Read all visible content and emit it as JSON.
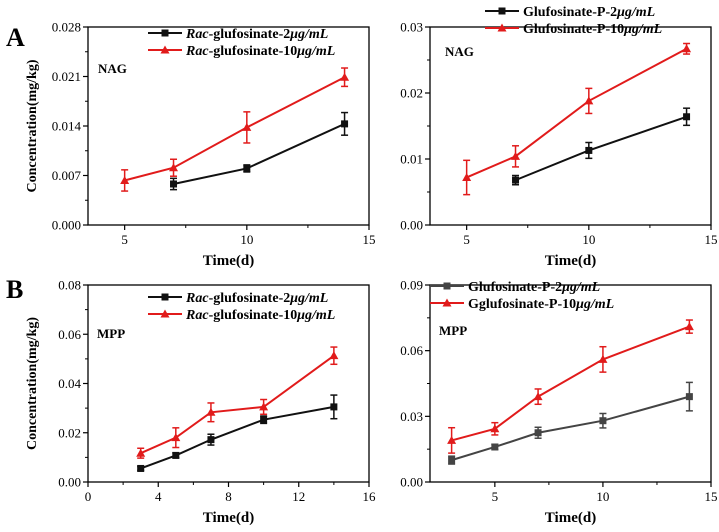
{
  "figure": {
    "panel_labels": [
      "A",
      "B"
    ]
  },
  "colors": {
    "series_2ug": "#111111",
    "series_2ug_gray": "#444444",
    "series_10ug": "#e11b1b",
    "axis": "#000000"
  },
  "chart_data": [
    {
      "panel": "A",
      "type": "line",
      "annotation": "NAG",
      "xlabel": "Time(d)",
      "ylabel": "Concentration(mg/kg)",
      "xlim": [
        3.5,
        15
      ],
      "ylim": [
        0,
        0.028
      ],
      "xticks": [
        5,
        10,
        15
      ],
      "yticks": [
        0.0,
        0.007,
        0.014,
        0.021,
        0.028
      ],
      "ytick_labels": [
        "0.000",
        "0.007",
        "0.014",
        "0.021",
        "0.028"
      ],
      "legend_position": "top-center",
      "series": [
        {
          "name": "Rac-glufosinate-2μg/mL",
          "name_prefix": "Rac",
          "name_rest": "-glufosinate-2",
          "name_unit": "μg/mL",
          "color_key": "series_2ug",
          "marker": "square",
          "x": [
            7,
            10,
            14
          ],
          "y": [
            0.0058,
            0.008,
            0.0143
          ],
          "err": [
            0.0008,
            0.0005,
            0.0016
          ]
        },
        {
          "name": "Rac-glufosinate-10μg/mL",
          "name_prefix": "Rac",
          "name_rest": "-glufosinate-10",
          "name_unit": "μg/mL",
          "color_key": "series_10ug",
          "marker": "triangle",
          "x": [
            5,
            7,
            10,
            14
          ],
          "y": [
            0.0063,
            0.0081,
            0.0138,
            0.0209
          ],
          "err": [
            0.0015,
            0.0012,
            0.0022,
            0.0013
          ]
        }
      ]
    },
    {
      "panel": "A",
      "type": "line",
      "annotation": "NAG",
      "xlabel": "Time(d)",
      "ylabel": "",
      "xlim": [
        3.5,
        15
      ],
      "ylim": [
        0,
        0.03
      ],
      "xticks": [
        5,
        10,
        15
      ],
      "yticks": [
        0.0,
        0.01,
        0.02,
        0.03
      ],
      "ytick_labels": [
        "0.00",
        "0.01",
        "0.02",
        "0.03"
      ],
      "legend_position": "top-center",
      "series": [
        {
          "name": "Glufosinate-P-2μg/mL",
          "name_prefix": "",
          "name_rest": "Glufosinate-P-2",
          "name_unit": "μg/mL",
          "color_key": "series_2ug",
          "marker": "square",
          "x": [
            7,
            10,
            14
          ],
          "y": [
            0.0068,
            0.0113,
            0.0164
          ],
          "err": [
            0.0007,
            0.0012,
            0.0013
          ]
        },
        {
          "name": "Glufosinate-P-10μg/mL",
          "name_prefix": "",
          "name_rest": "Glufosinate-P-10",
          "name_unit": "μg/mL",
          "color_key": "series_10ug",
          "marker": "triangle",
          "x": [
            5,
            7,
            10,
            14
          ],
          "y": [
            0.0072,
            0.0104,
            0.0188,
            0.0267
          ],
          "err": [
            0.0026,
            0.0016,
            0.0019,
            0.0008
          ]
        }
      ]
    },
    {
      "panel": "B",
      "type": "line",
      "annotation": "MPP",
      "xlabel": "Time(d)",
      "ylabel": "Concentration(mg/kg)",
      "xlim": [
        0,
        16
      ],
      "ylim": [
        0,
        0.08
      ],
      "xticks": [
        0,
        4,
        8,
        12,
        16
      ],
      "yticks": [
        0.0,
        0.02,
        0.04,
        0.06,
        0.08
      ],
      "ytick_labels": [
        "0.00",
        "0.02",
        "0.04",
        "0.06",
        "0.08"
      ],
      "legend_position": "top-center",
      "series": [
        {
          "name": "Rac-glufosinate-2μg/mL",
          "name_prefix": "Rac",
          "name_rest": "-glufosinate-2",
          "name_unit": "μg/mL",
          "color_key": "series_2ug",
          "marker": "square",
          "x": [
            3,
            5,
            7,
            10,
            14
          ],
          "y": [
            0.0055,
            0.0108,
            0.0172,
            0.0253,
            0.0305
          ],
          "err": [
            0.0008,
            0.001,
            0.0022,
            0.0015,
            0.0048
          ]
        },
        {
          "name": "Rac-glufosinate-10μg/mL",
          "name_prefix": "Rac",
          "name_rest": "-glufosinate-10",
          "name_unit": "μg/mL",
          "color_key": "series_10ug",
          "marker": "triangle",
          "x": [
            3,
            5,
            7,
            10,
            14
          ],
          "y": [
            0.0117,
            0.018,
            0.0283,
            0.0305,
            0.0513
          ],
          "err": [
            0.002,
            0.004,
            0.0038,
            0.003,
            0.0035
          ]
        }
      ]
    },
    {
      "panel": "B",
      "type": "line",
      "annotation": "MPP",
      "xlabel": "Time(d)",
      "ylabel": "",
      "xlim": [
        2,
        15
      ],
      "ylim": [
        0,
        0.09
      ],
      "xticks": [
        5,
        10,
        15
      ],
      "yticks": [
        0.0,
        0.03,
        0.06,
        0.09
      ],
      "ytick_labels": [
        "0.00",
        "0.03",
        "0.06",
        "0.09"
      ],
      "legend_position": "top-center",
      "series": [
        {
          "name": "Glufosinate-P-2μg/mL",
          "name_prefix": "",
          "name_rest": "Glufosinate-P-2",
          "name_unit": "μg/mL",
          "color_key": "series_2ug_gray",
          "marker": "square",
          "x": [
            3,
            5,
            7,
            10,
            14
          ],
          "y": [
            0.01,
            0.016,
            0.0225,
            0.028,
            0.039
          ],
          "err": [
            0.0018,
            0.0012,
            0.0025,
            0.0033,
            0.0065
          ]
        },
        {
          "name": "Gglufosinate-P-10μg/mL",
          "name_prefix": "",
          "name_rest": "Gglufosinate-P-10",
          "name_unit": "μg/mL",
          "color_key": "series_10ug",
          "marker": "triangle",
          "x": [
            3,
            5,
            7,
            10,
            14
          ],
          "y": [
            0.019,
            0.0243,
            0.039,
            0.056,
            0.071
          ],
          "err": [
            0.0058,
            0.0028,
            0.0035,
            0.0058,
            0.003
          ]
        }
      ]
    }
  ]
}
